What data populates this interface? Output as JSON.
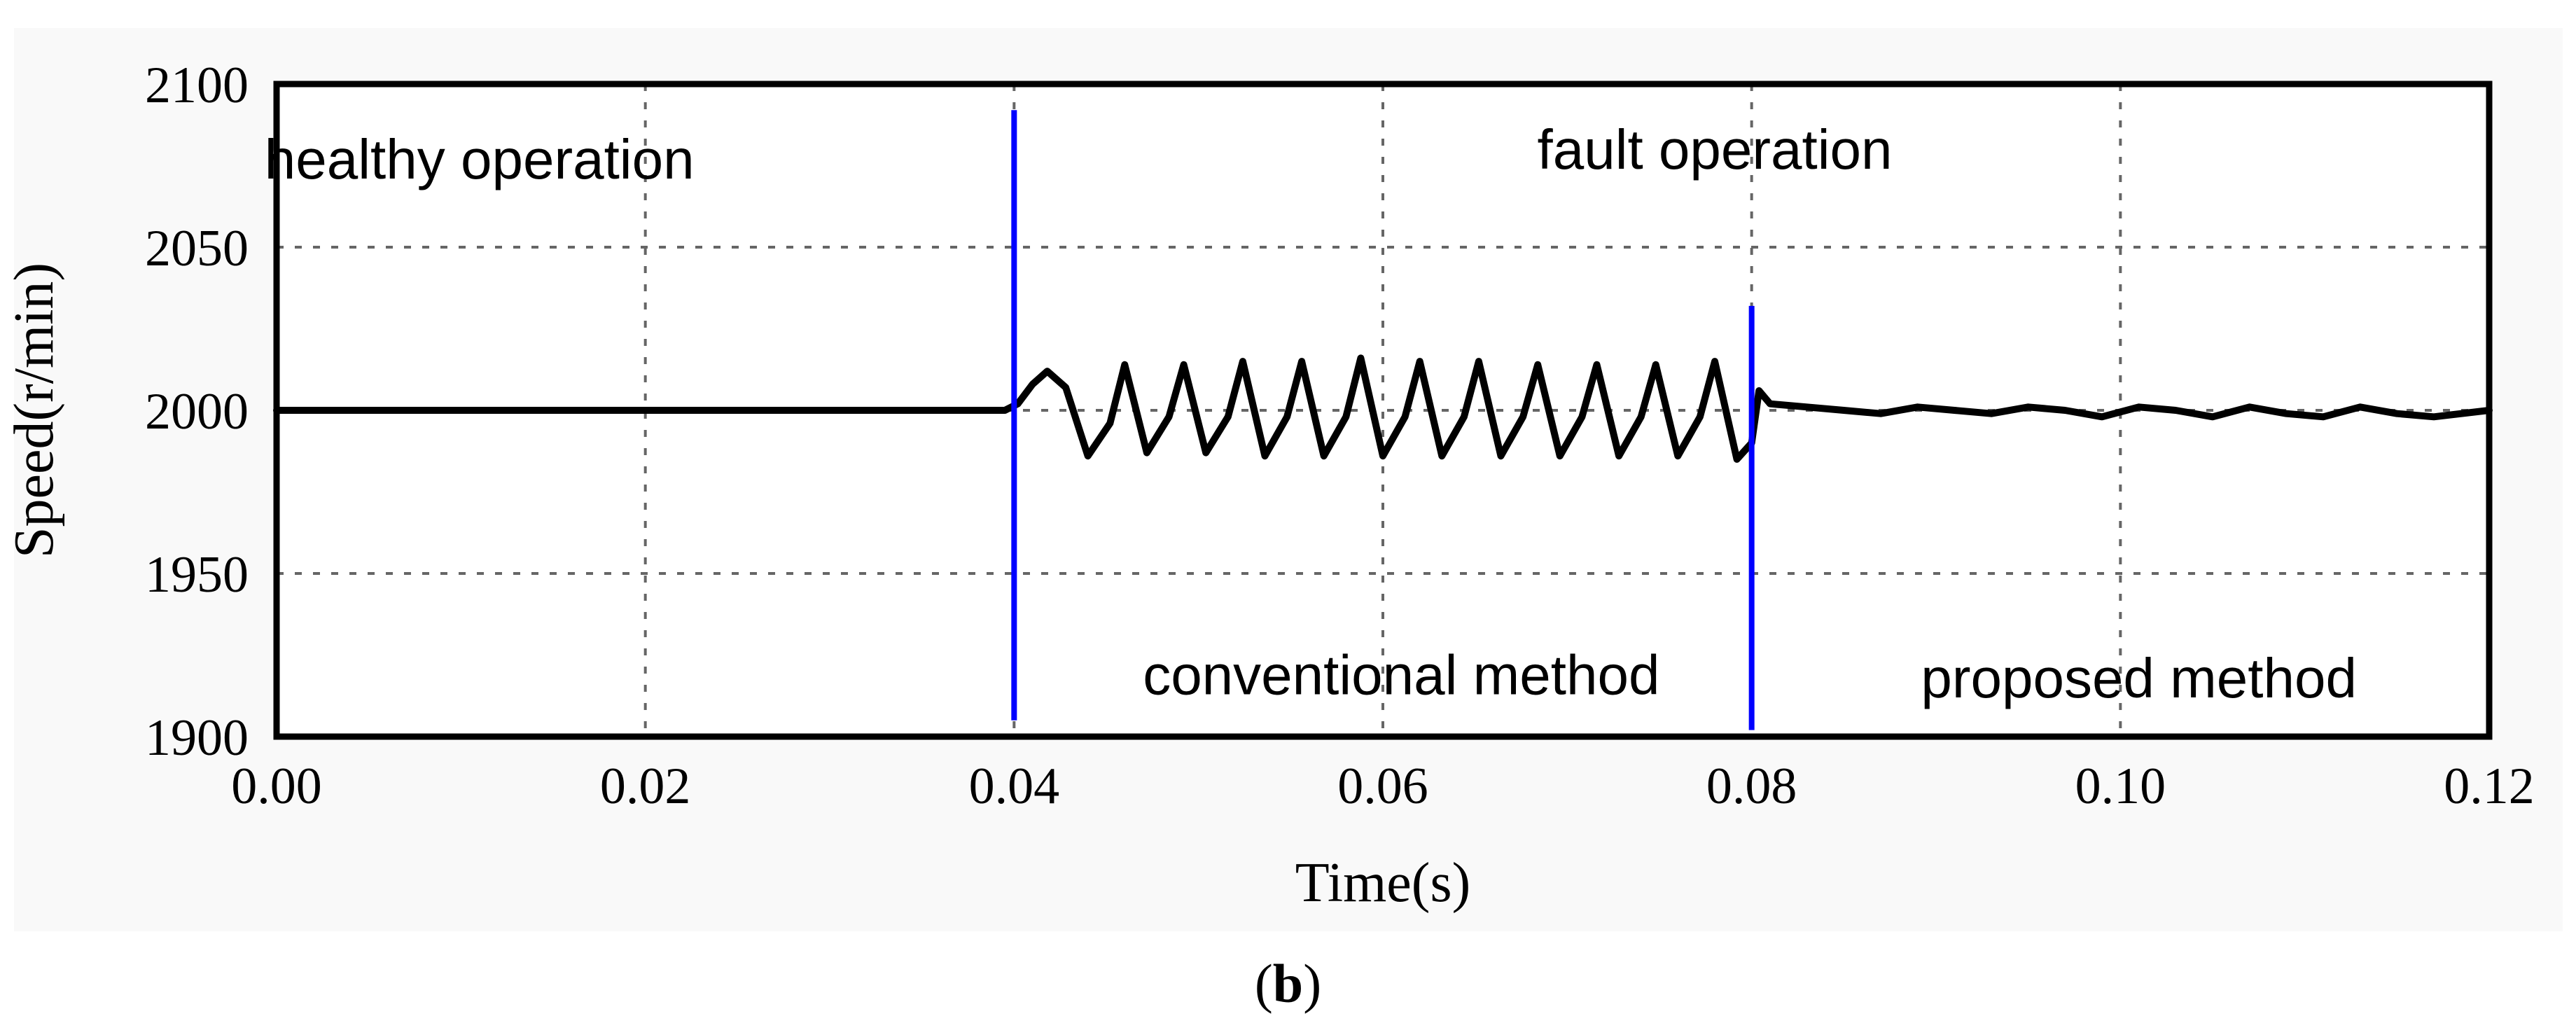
{
  "caption": {
    "open": "(",
    "label": "b",
    "close": ")"
  },
  "chart_data": {
    "type": "line",
    "title": "",
    "xlabel": "Time(s)",
    "ylabel": "Speed(r/min)",
    "xlim": [
      0.0,
      0.12
    ],
    "ylim": [
      1900,
      2100
    ],
    "xticks": [
      "0.00",
      "0.02",
      "0.04",
      "0.06",
      "0.08",
      "0.10",
      "0.12"
    ],
    "yticks": [
      "1900",
      "1950",
      "2000",
      "2050",
      "2100"
    ],
    "grid": true,
    "grid_style": "dotted",
    "series": [
      {
        "color": "#000000",
        "segments": [
          {
            "x_range": [
              0.0,
              0.04
            ],
            "mean": 2000,
            "ripple_amplitude": 1
          },
          {
            "x_range": [
              0.04,
              0.08
            ],
            "peaks": [
              2015,
              2016,
              2014
            ],
            "troughs": [
              1984,
              1986,
              1985
            ],
            "oscillation_period": 0.0032
          },
          {
            "x_range": [
              0.08,
              0.12
            ],
            "mean": 2000,
            "ripple_amplitude": 3
          }
        ],
        "samples_x": [
          0.0,
          0.004,
          0.008,
          0.012,
          0.016,
          0.02,
          0.024,
          0.028,
          0.032,
          0.036,
          0.0395,
          0.0402,
          0.041,
          0.0418,
          0.0428,
          0.044,
          0.0452,
          0.046,
          0.0472,
          0.0484,
          0.0492,
          0.0504,
          0.0516,
          0.0524,
          0.0536,
          0.0548,
          0.0556,
          0.0568,
          0.058,
          0.0588,
          0.06,
          0.0612,
          0.062,
          0.0632,
          0.0644,
          0.0652,
          0.0664,
          0.0676,
          0.0684,
          0.0696,
          0.0708,
          0.0716,
          0.0728,
          0.074,
          0.0748,
          0.076,
          0.0772,
          0.078,
          0.0792,
          0.08,
          0.0804,
          0.081,
          0.083,
          0.085,
          0.087,
          0.089,
          0.091,
          0.093,
          0.095,
          0.097,
          0.099,
          0.101,
          0.103,
          0.105,
          0.107,
          0.109,
          0.111,
          0.113,
          0.115,
          0.117,
          0.12
        ],
        "samples_y": [
          2000,
          2000,
          2000,
          2000,
          2000,
          2000,
          2000,
          2000,
          2000,
          2000,
          2000,
          2002,
          2008,
          2012,
          2007,
          1986,
          1996,
          2014,
          1987,
          1998,
          2014,
          1987,
          1998,
          2015,
          1986,
          1998,
          2015,
          1986,
          1998,
          2016,
          1986,
          1998,
          2015,
          1986,
          1998,
          2015,
          1986,
          1998,
          2014,
          1986,
          1998,
          2014,
          1986,
          1998,
          2014,
          1986,
          1998,
          2015,
          1985,
          1990,
          2006,
          2002,
          2001,
          2000,
          1999,
          2001,
          2000,
          1999,
          2001,
          2000,
          1998,
          2001,
          2000,
          1998,
          2001,
          1999,
          1998,
          2001,
          1999,
          1998,
          2000
        ]
      }
    ],
    "markers": [
      {
        "x": 0.04,
        "color": "#0000ff",
        "y_range": [
          1905,
          2092
        ]
      },
      {
        "x": 0.08,
        "color": "#0000ff",
        "y_range": [
          1902,
          2032
        ]
      }
    ],
    "annotations": [
      {
        "text": "healthy operation",
        "x": 0.011,
        "y": 2077
      },
      {
        "text": "fault operation",
        "x": 0.078,
        "y": 2080
      },
      {
        "text": "conventional method",
        "x": 0.061,
        "y": 1919
      },
      {
        "text": "proposed method",
        "x": 0.101,
        "y": 1918
      }
    ]
  }
}
